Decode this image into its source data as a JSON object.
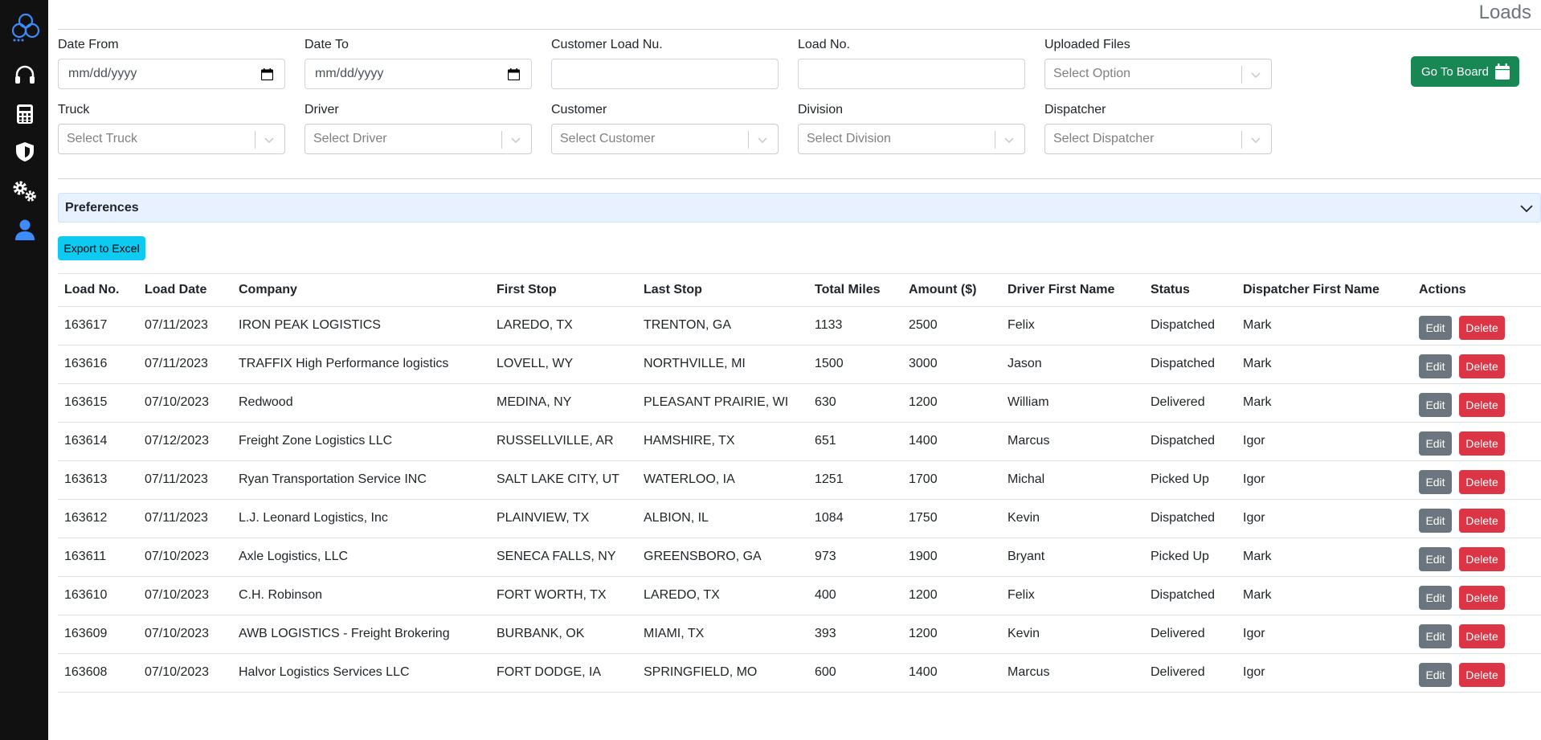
{
  "page": {
    "title": "Loads"
  },
  "sidebar": {
    "items": [
      {
        "icon": "headset-icon"
      },
      {
        "icon": "calculator-icon"
      },
      {
        "icon": "shield-icon"
      },
      {
        "icon": "gears-icon"
      },
      {
        "icon": "user-icon"
      }
    ]
  },
  "filters": {
    "date_from": {
      "label": "Date From",
      "value": "mm/dd/yyyy"
    },
    "date_to": {
      "label": "Date To",
      "value": "mm/dd/yyyy"
    },
    "customer_load_no": {
      "label": "Customer Load Nu.",
      "value": ""
    },
    "load_no": {
      "label": "Load No.",
      "value": ""
    },
    "uploaded_files": {
      "label": "Uploaded Files",
      "placeholder": "Select Option"
    },
    "truck": {
      "label": "Truck",
      "placeholder": "Select Truck"
    },
    "driver": {
      "label": "Driver",
      "placeholder": "Select Driver"
    },
    "customer": {
      "label": "Customer",
      "placeholder": "Select Customer"
    },
    "division": {
      "label": "Division",
      "placeholder": "Select Division"
    },
    "dispatcher": {
      "label": "Dispatcher",
      "placeholder": "Select Dispatcher"
    }
  },
  "go_to_board": {
    "label": "Go To Board"
  },
  "preferences": {
    "label": "Preferences"
  },
  "export": {
    "label": "Export to Excel"
  },
  "table": {
    "headers": [
      "Load No.",
      "Load Date",
      "Company",
      "First Stop",
      "Last Stop",
      "Total Miles",
      "Amount ($)",
      "Driver First Name",
      "Status",
      "Dispatcher First Name",
      "Actions"
    ],
    "edit_label": "Edit",
    "delete_label": "Delete",
    "rows": [
      [
        "163617",
        "07/11/2023",
        "IRON PEAK LOGISTICS",
        "LAREDO, TX",
        "TRENTON, GA",
        "1133",
        "2500",
        "Felix",
        "Dispatched",
        "Mark"
      ],
      [
        "163616",
        "07/11/2023",
        "TRAFFIX High Performance logistics",
        "LOVELL, WY",
        "NORTHVILLE, MI",
        "1500",
        "3000",
        "Jason",
        "Dispatched",
        "Mark"
      ],
      [
        "163615",
        "07/10/2023",
        "Redwood",
        "MEDINA, NY",
        "PLEASANT PRAIRIE, WI",
        "630",
        "1200",
        "William",
        "Delivered",
        "Mark"
      ],
      [
        "163614",
        "07/12/2023",
        "Freight Zone Logistics LLC",
        "RUSSELLVILLE, AR",
        "HAMSHIRE, TX",
        "651",
        "1400",
        "Marcus",
        "Dispatched",
        "Igor"
      ],
      [
        "163613",
        "07/11/2023",
        "Ryan Transportation Service INC",
        "SALT LAKE CITY, UT",
        "WATERLOO, IA",
        "1251",
        "1700",
        "Michal",
        "Picked Up",
        "Igor"
      ],
      [
        "163612",
        "07/11/2023",
        "L.J. Leonard Logistics, Inc",
        "PLAINVIEW, TX",
        "ALBION, IL",
        "1084",
        "1750",
        "Kevin",
        "Dispatched",
        "Igor"
      ],
      [
        "163611",
        "07/10/2023",
        "Axle Logistics, LLC",
        "SENECA FALLS, NY",
        "GREENSBORO, GA",
        "973",
        "1900",
        "Bryant",
        "Picked Up",
        "Mark"
      ],
      [
        "163610",
        "07/10/2023",
        "C.H. Robinson",
        "FORT WORTH, TX",
        "LAREDO, TX",
        "400",
        "1200",
        "Felix",
        "Dispatched",
        "Mark"
      ],
      [
        "163609",
        "07/10/2023",
        "AWB LOGISTICS - Freight Brokering",
        "BURBANK, OK",
        "MIAMI, TX",
        "393",
        "1200",
        "Kevin",
        "Delivered",
        "Igor"
      ],
      [
        "163608",
        "07/10/2023",
        "Halvor Logistics Services LLC",
        "FORT DODGE, IA",
        "SPRINGFIELD, MO",
        "600",
        "1400",
        "Marcus",
        "Delivered",
        "Igor"
      ]
    ]
  }
}
